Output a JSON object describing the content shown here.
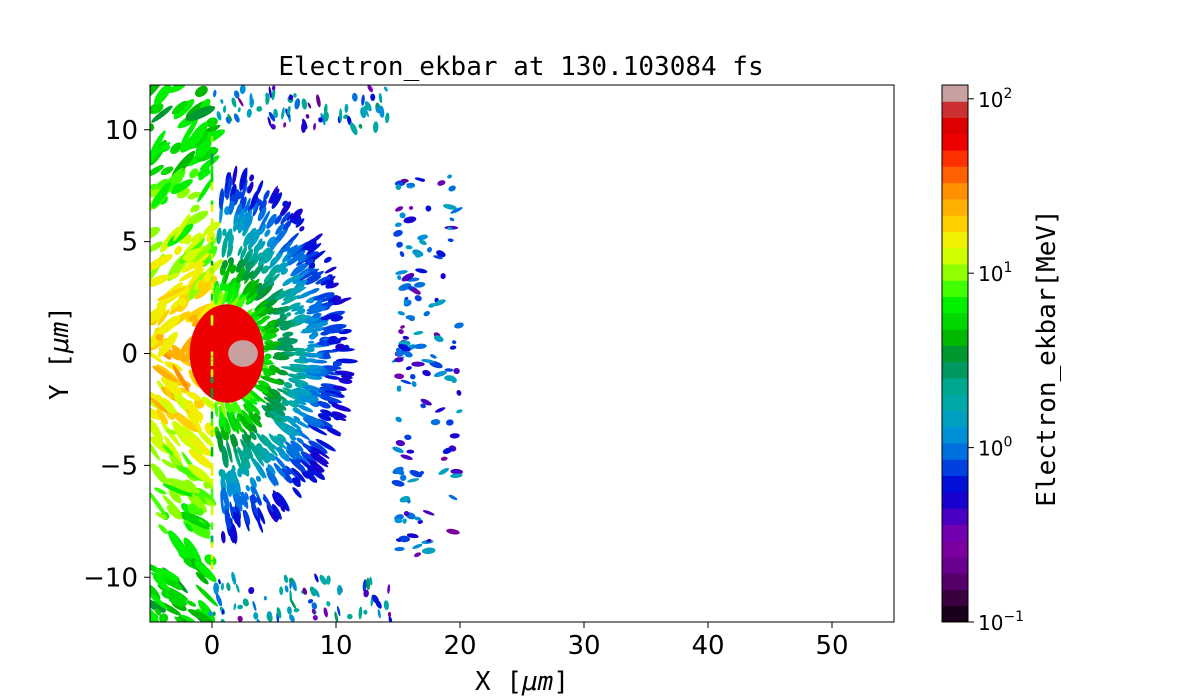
{
  "chart_data": {
    "type": "heatmap",
    "title": "Electron_ekbar at 130.103084 fs",
    "xlabel": "X  [$\\mu m$]",
    "ylabel": "Y  [$\\mu m$]",
    "xlabel_text": "X  [",
    "xlabel_unit": "μm",
    "xlabel_close": "]",
    "ylabel_text": "Y  [",
    "ylabel_unit": "μm",
    "ylabel_close": "]",
    "xlim": [
      -5,
      55
    ],
    "ylim": [
      -12,
      12
    ],
    "xticks": [
      0,
      10,
      20,
      30,
      40,
      50
    ],
    "xtick_labels": [
      "0",
      "10",
      "20",
      "30",
      "40",
      "50"
    ],
    "yticks": [
      -10,
      -5,
      0,
      5,
      10
    ],
    "ytick_labels": [
      "−10",
      "−5",
      "0",
      "5",
      "10"
    ],
    "grid": false,
    "colorbar": {
      "label": "Electron_ekbar[MeV]",
      "scale": "log",
      "range": [
        0.1,
        120
      ],
      "ticks": [
        0.1,
        1,
        10,
        100
      ],
      "tick_labels": [
        {
          "base": "10",
          "exp": "−1"
        },
        {
          "base": "10",
          "exp": "0"
        },
        {
          "base": "10",
          "exp": "1"
        },
        {
          "base": "10",
          "exp": "2"
        }
      ],
      "colors": [
        "#1a001a",
        "#3a0040",
        "#55006a",
        "#6a0090",
        "#7a00a0",
        "#7000b0",
        "#4a00c0",
        "#1a00d0",
        "#0010d8",
        "#0040e0",
        "#0070e0",
        "#0090d8",
        "#00a0c0",
        "#00a8a8",
        "#00a890",
        "#009a60",
        "#009930",
        "#00b800",
        "#00d800",
        "#00f000",
        "#40ff00",
        "#90ff00",
        "#d0ff00",
        "#f0f000",
        "#ffd000",
        "#ffb000",
        "#ff9000",
        "#ff6000",
        "#ff3000",
        "#ee0000",
        "#dd0000",
        "#cc3030",
        "#c8a0a0"
      ]
    },
    "regions": {
      "core": {
        "x": [
          -1,
          4
        ],
        "y": [
          -2,
          2
        ],
        "value": 60
      },
      "hot_spot": {
        "x": [
          1.5,
          3.5
        ],
        "y": [
          -0.6,
          0.6
        ],
        "value": 110
      },
      "cone": {
        "x": [
          -5,
          12
        ],
        "y": [
          -6.5,
          6.5
        ],
        "value_range": [
          0.15,
          20
        ]
      },
      "left_fan": {
        "x": [
          -5,
          0
        ],
        "y": [
          -12,
          12
        ],
        "value_range": [
          3,
          30
        ]
      },
      "target_edges": {
        "x_left": 0,
        "x_right": 14.8,
        "y_top": 10,
        "y_bottom": -10
      },
      "rear_filaments": {
        "x": [
          15,
          20
        ],
        "y": [
          -9,
          8
        ],
        "value_range": [
          0.2,
          1.5
        ]
      }
    }
  }
}
